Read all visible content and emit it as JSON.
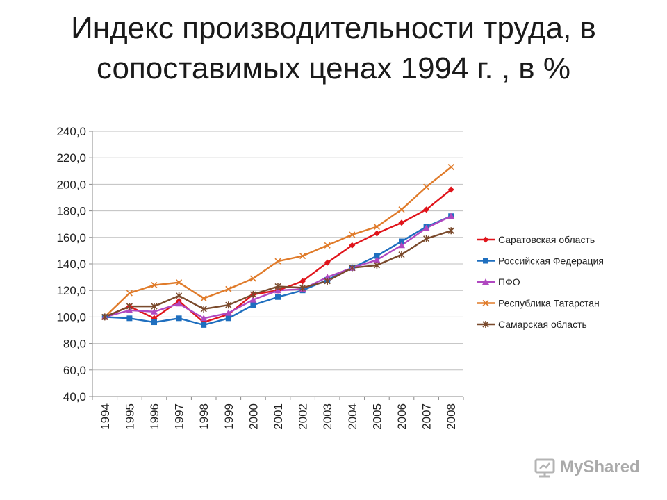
{
  "title_lines": [
    "Индекс производительности труда, в",
    "сопоставимых ценах 1994 г. , в %"
  ],
  "watermark": {
    "text": "MyShared",
    "icon": "presentation-board-icon"
  },
  "chart_data": {
    "type": "line",
    "x": [
      "1994",
      "1995",
      "1996",
      "1997",
      "1998",
      "1999",
      "2000",
      "2001",
      "2002",
      "2003",
      "2004",
      "2005",
      "2006",
      "2007",
      "2008"
    ],
    "ylim": [
      40,
      240
    ],
    "yticks": [
      40,
      60,
      80,
      100,
      120,
      140,
      160,
      180,
      200,
      220,
      240
    ],
    "ytick_labels": [
      "40,0",
      "60,0",
      "80,0",
      "100,0",
      "120,0",
      "140,0",
      "160,0",
      "180,0",
      "200,0",
      "220,0",
      "240,0"
    ],
    "grid": true,
    "legend_position": "right",
    "series": [
      {
        "name": "Саратовская область",
        "color": "#e0141b",
        "marker": "diamond",
        "values": [
          100,
          108,
          99,
          112,
          96,
          102,
          117,
          120,
          127,
          141,
          154,
          163,
          171,
          181,
          196
        ]
      },
      {
        "name": "Российская Федерация",
        "color": "#1f6fbf",
        "marker": "square",
        "values": [
          100,
          99,
          96,
          99,
          94,
          99,
          109,
          115,
          120,
          128,
          137,
          146,
          157,
          168,
          176
        ]
      },
      {
        "name": "ПФО",
        "color": "#b048c0",
        "marker": "triangle",
        "values": [
          100,
          105,
          104,
          110,
          99,
          103,
          113,
          120,
          121,
          130,
          137,
          143,
          154,
          167,
          176
        ]
      },
      {
        "name": "Республика Татарстан",
        "color": "#e07b2a",
        "marker": "x",
        "values": [
          100,
          118,
          124,
          126,
          114,
          121,
          129,
          142,
          146,
          154,
          162,
          168,
          181,
          198,
          213
        ]
      },
      {
        "name": "Самарская область",
        "color": "#7a4a2c",
        "marker": "star",
        "values": [
          100,
          108,
          108,
          116,
          106,
          109,
          117,
          123,
          122,
          127,
          137,
          139,
          147,
          159,
          165
        ]
      }
    ]
  }
}
